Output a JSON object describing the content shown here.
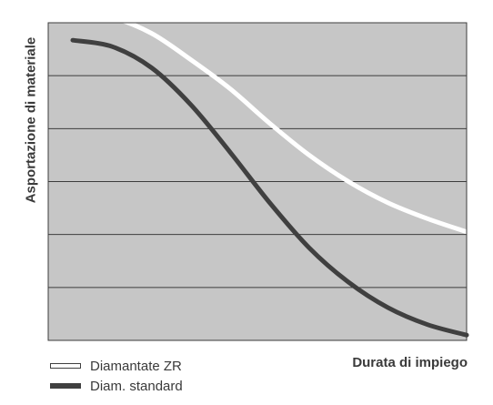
{
  "chart_data": {
    "type": "line",
    "title": "",
    "xlabel": "Durata di impiego",
    "ylabel": "Asportazione di materiale",
    "xlim": [
      0,
      10
    ],
    "ylim": [
      0,
      6
    ],
    "grid": true,
    "legend_position": "bottom-left",
    "colors": {
      "plot_bg": "#c6c6c6",
      "grid": "#3c3c3c",
      "diamantate_zr": "#ffffff",
      "diam_standard": "#404040"
    },
    "series": [
      {
        "name": "Diamantate ZR",
        "x": [
          0,
          1,
          2,
          3,
          4,
          5,
          6,
          7,
          8,
          9,
          10
        ],
        "y": [
          6.2,
          6.1,
          5.8,
          5.3,
          4.75,
          4.1,
          3.5,
          3.0,
          2.6,
          2.3,
          2.05
        ]
      },
      {
        "name": "Diam. standard",
        "x": [
          0,
          1,
          2,
          3,
          4,
          5,
          6,
          7,
          8,
          9,
          10
        ],
        "y": [
          5.67,
          5.55,
          5.15,
          4.45,
          3.55,
          2.6,
          1.75,
          1.1,
          0.62,
          0.3,
          0.1
        ]
      }
    ]
  }
}
